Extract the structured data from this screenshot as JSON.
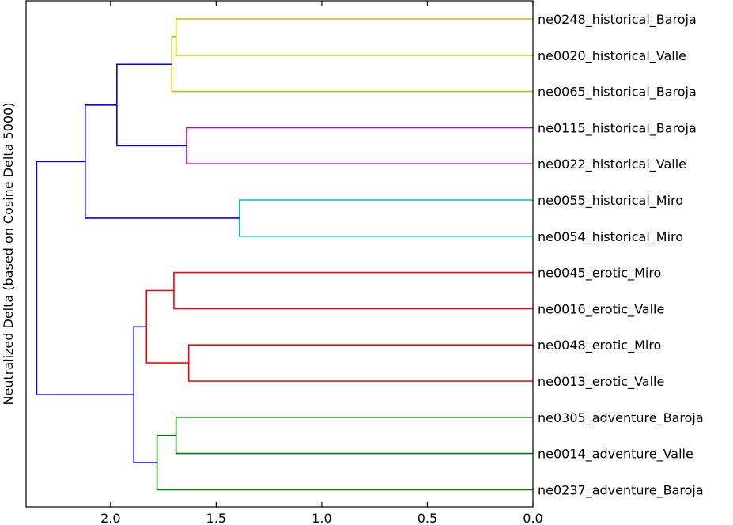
{
  "chart_data": {
    "type": "dendrogram",
    "orientation": "left",
    "ylabel": "Neutralized Delta (based on Cosine Delta 5000)",
    "xlim": [
      2.4,
      0.0
    ],
    "xticks": [
      {
        "value": 2.0,
        "label": "2.0"
      },
      {
        "value": 1.5,
        "label": "1.5"
      },
      {
        "value": 1.0,
        "label": "1.0"
      },
      {
        "value": 0.5,
        "label": "0.5"
      },
      {
        "value": 0.0,
        "label": "0.0"
      }
    ],
    "leaves": [
      "ne0248_historical_Baroja",
      "ne0020_historical_Valle",
      "ne0065_historical_Baroja",
      "ne0115_historical_Baroja",
      "ne0022_historical_Valle",
      "ne0055_historical_Miro",
      "ne0054_historical_Miro",
      "ne0045_erotic_Miro",
      "ne0016_erotic_Valle",
      "ne0048_erotic_Miro",
      "ne0013_erotic_Valle",
      "ne0305_adventure_Baroja",
      "ne0014_adventure_Valle",
      "ne0237_adventure_Baroja"
    ],
    "colors": {
      "yellow": "#bfbf00",
      "magenta": "#bf00bf",
      "cyan": "#00bfbf",
      "red": "#ff0000",
      "green": "#008000",
      "blue": "#0000ff"
    },
    "merges": [
      {
        "id": "A",
        "left": 0,
        "right": 1,
        "height": 1.69,
        "color": "yellow"
      },
      {
        "id": "B",
        "left": "A",
        "right": 2,
        "height": 1.71,
        "color": "yellow"
      },
      {
        "id": "C",
        "left": 3,
        "right": 4,
        "height": 1.64,
        "color": "magenta"
      },
      {
        "id": "D",
        "left": "B",
        "right": "C",
        "height": 1.97,
        "color": "blue"
      },
      {
        "id": "E",
        "left": 5,
        "right": 6,
        "height": 1.39,
        "color": "cyan"
      },
      {
        "id": "F",
        "left": "D",
        "right": "E",
        "height": 2.12,
        "color": "blue"
      },
      {
        "id": "G",
        "left": 7,
        "right": 8,
        "height": 1.7,
        "color": "red"
      },
      {
        "id": "H",
        "left": 9,
        "right": 10,
        "height": 1.63,
        "color": "red"
      },
      {
        "id": "I",
        "left": "G",
        "right": "H",
        "height": 1.83,
        "color": "red"
      },
      {
        "id": "J",
        "left": 11,
        "right": 12,
        "height": 1.69,
        "color": "green"
      },
      {
        "id": "K",
        "left": "J",
        "right": 13,
        "height": 1.78,
        "color": "green"
      },
      {
        "id": "L",
        "left": "I",
        "right": "K",
        "height": 1.89,
        "color": "blue"
      },
      {
        "id": "M",
        "left": "F",
        "right": "L",
        "height": 2.35,
        "color": "blue"
      }
    ]
  }
}
